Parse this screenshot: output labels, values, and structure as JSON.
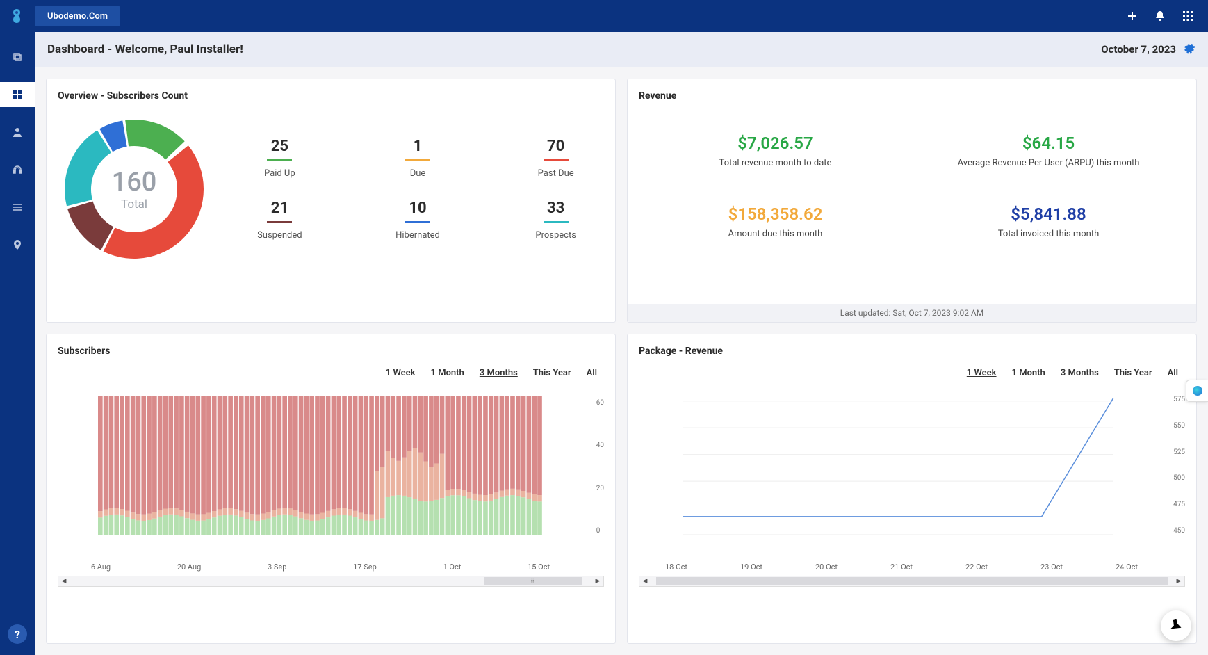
{
  "topbar": {
    "site_name": "Ubodemo.Com"
  },
  "header": {
    "title": "Dashboard - Welcome, Paul Installer!",
    "date": "October 7, 2023"
  },
  "overview": {
    "title": "Overview - Subscribers Count",
    "donut": {
      "total_value": "160",
      "total_label": "Total",
      "segments": [
        {
          "label": "Past Due",
          "value": 70,
          "color": "#e64a3b"
        },
        {
          "label": "Suspended",
          "value": 21,
          "color": "#7a3b3b"
        },
        {
          "label": "Prospects",
          "value": 33,
          "color": "#2bb9c0"
        },
        {
          "label": "Hibernated",
          "value": 10,
          "color": "#2f6fd6"
        },
        {
          "label": "Paid Up",
          "value": 25,
          "color": "#4caf50"
        },
        {
          "label": "Due",
          "value": 1,
          "color": "#f2a93b"
        }
      ]
    },
    "stats": [
      {
        "value": "25",
        "label": "Paid Up",
        "color": "#4caf50"
      },
      {
        "value": "1",
        "label": "Due",
        "color": "#f2a93b"
      },
      {
        "value": "70",
        "label": "Past Due",
        "color": "#e64a3b"
      },
      {
        "value": "21",
        "label": "Suspended",
        "color": "#7a3b3b"
      },
      {
        "value": "10",
        "label": "Hibernated",
        "color": "#2f6fd6"
      },
      {
        "value": "33",
        "label": "Prospects",
        "color": "#2bb9c0"
      }
    ]
  },
  "revenue": {
    "title": "Revenue",
    "items": [
      {
        "value": "$7,026.57",
        "label": "Total revenue month to date",
        "color": "#28a745"
      },
      {
        "value": "$64.15",
        "label": "Average Revenue Per User (ARPU) this month",
        "color": "#28a745"
      },
      {
        "value": "$158,358.62",
        "label": "Amount due this month",
        "color": "#f2a93b"
      },
      {
        "value": "$5,841.88",
        "label": "Total invoiced this month",
        "color": "#1f3fa6"
      }
    ],
    "last_updated": "Last updated: Sat, Oct 7, 2023 9:02 AM"
  },
  "subscribers_chart": {
    "title": "Subscribers",
    "tabs": [
      "1 Week",
      "1 Month",
      "3 Months",
      "This Year",
      "All"
    ],
    "active_tab": "3 Months",
    "type": "stacked-bar",
    "y_labels": [
      "60",
      "40",
      "20",
      "0"
    ],
    "x_labels": [
      "6 Aug",
      "20 Aug",
      "3 Sep",
      "17 Sep",
      "1 Oct",
      "15 Oct"
    ],
    "series_colors": {
      "top": "#d98a8a",
      "mid": "#eab3a0",
      "bottom": "#b5e0b0"
    },
    "ylim": [
      0,
      65
    ],
    "bar_count": 82,
    "scroll_thumb": {
      "left_pct": 78,
      "width_pct": 18
    }
  },
  "package_chart": {
    "title": "Package - Revenue",
    "tabs": [
      "1 Week",
      "1 Month",
      "3 Months",
      "This Year",
      "All"
    ],
    "active_tab": "1 Week",
    "type": "line",
    "line_color": "#5a8edb",
    "y_labels": [
      "575",
      "550",
      "525",
      "500",
      "475",
      "450"
    ],
    "x_labels": [
      "18 Oct",
      "19 Oct",
      "20 Oct",
      "21 Oct",
      "22 Oct",
      "23 Oct",
      "24 Oct"
    ],
    "ylim": [
      450,
      580
    ],
    "points": [
      {
        "x": 0,
        "y": 467
      },
      {
        "x": 1,
        "y": 467
      },
      {
        "x": 2,
        "y": 467
      },
      {
        "x": 3,
        "y": 467
      },
      {
        "x": 4,
        "y": 467
      },
      {
        "x": 5,
        "y": 467
      },
      {
        "x": 6,
        "y": 578
      }
    ],
    "scroll_thumb": {
      "left_pct": 3,
      "width_pct": 94
    }
  }
}
